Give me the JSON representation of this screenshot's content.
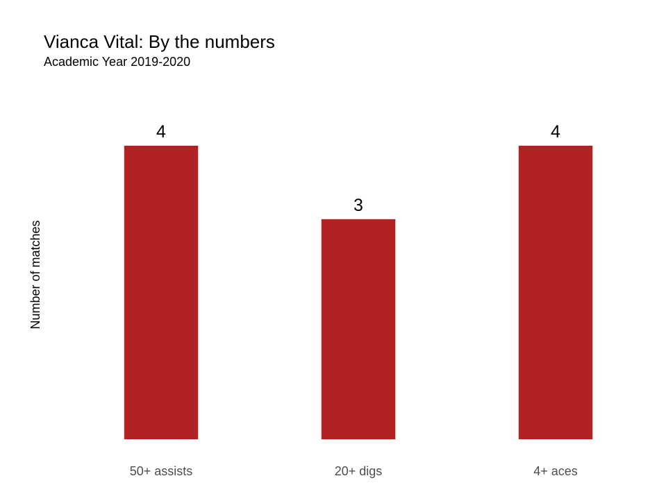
{
  "chart_data": {
    "type": "bar",
    "title": "Vianca Vital: By the numbers",
    "subtitle": "Academic Year 2019-2020",
    "xlabel": "",
    "ylabel": "Number of matches",
    "categories": [
      "50+ assists",
      "20+ digs",
      "4+ aces"
    ],
    "values": [
      4,
      3,
      4
    ],
    "data_labels": [
      "4",
      "3",
      "4"
    ],
    "ylim": [
      0,
      4.2
    ],
    "grid": false,
    "legend": "none",
    "bar_color": "#B22222"
  }
}
